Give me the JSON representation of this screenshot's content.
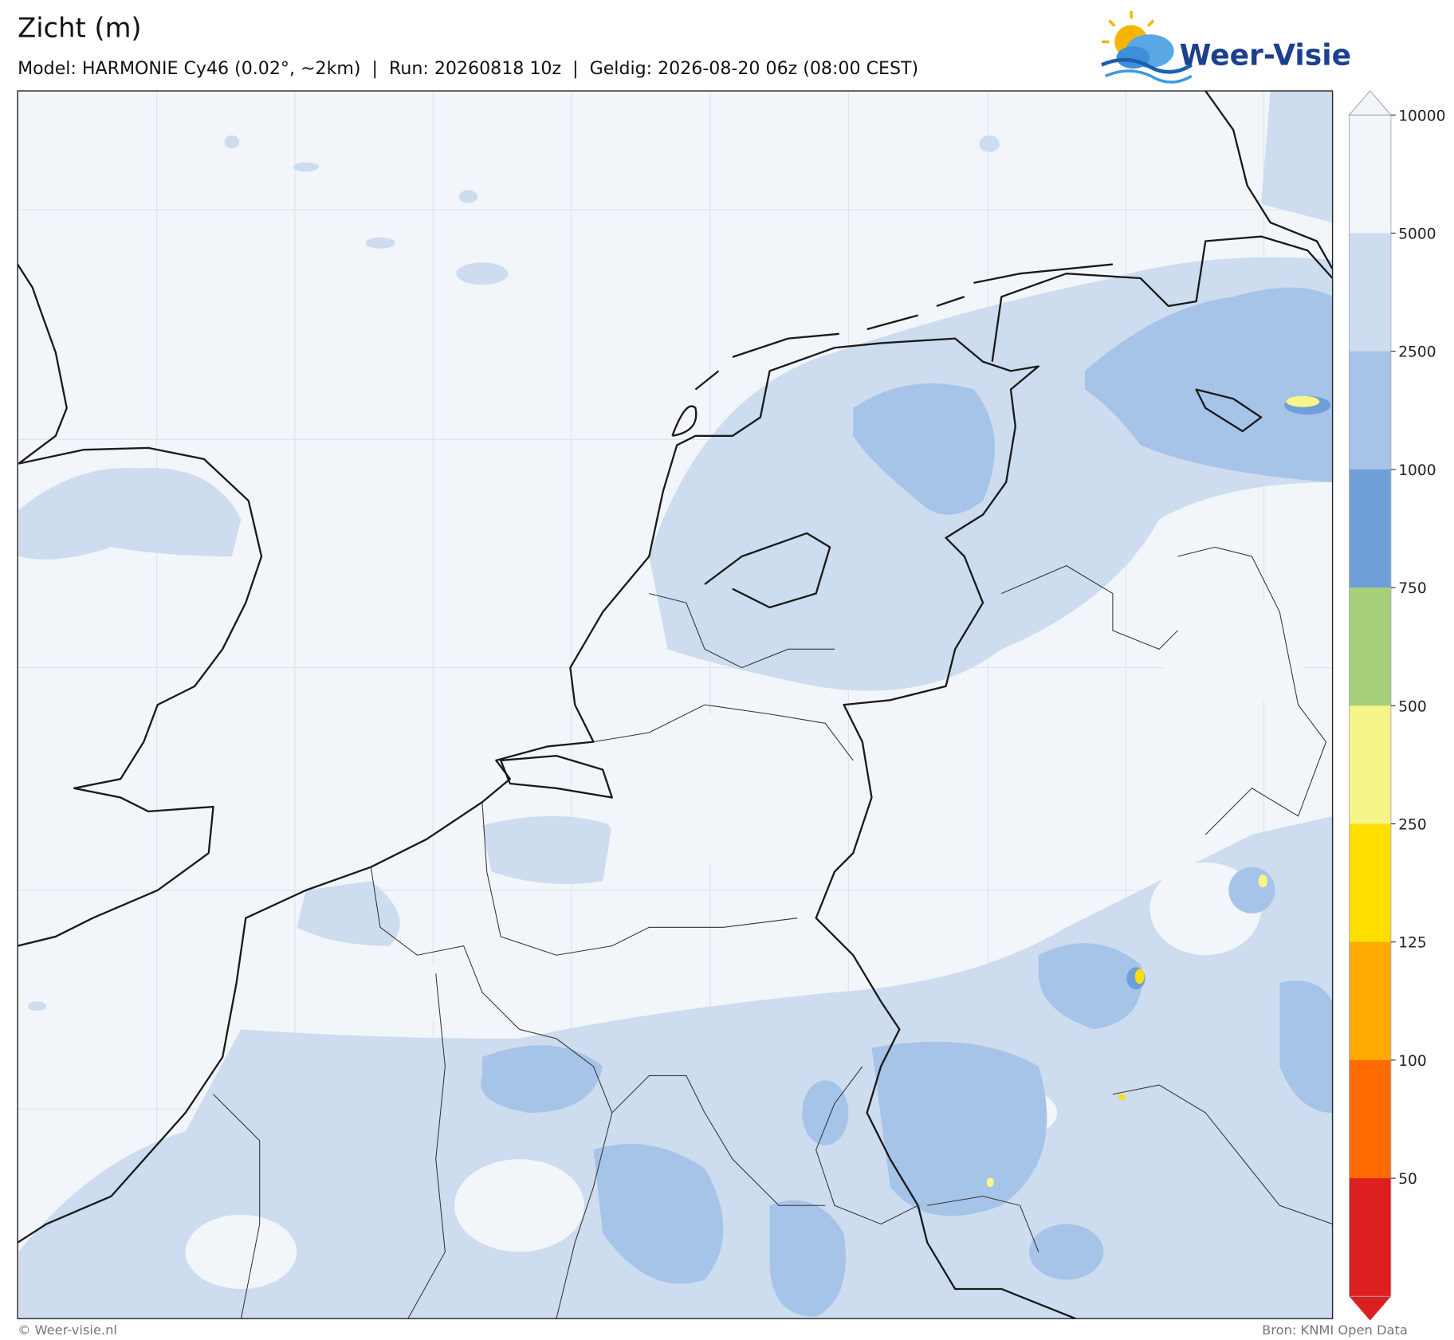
{
  "header": {
    "title": "Zicht (m)",
    "subtitle": "Model: HARMONIE Cy46 (0.02°, ~2km)  |  Run: 20260818 10z  |  Geldig: 2026-08-20 06z (08:00 CEST)"
  },
  "logo": {
    "text": "Weer-Visie"
  },
  "colorbar": {
    "levels": [
      10000,
      5000,
      2500,
      1000,
      750,
      500,
      250,
      125,
      100,
      50
    ],
    "colors": [
      "#f2f5fa",
      "#cddcef",
      "#a6c3e8",
      "#6f9fd8",
      "#a7d07a",
      "#f5f58a",
      "#ffdf00",
      "#ffaa00",
      "#ff6a00",
      "#dc1f1f"
    ]
  },
  "footer": {
    "left": "© Weer-visie.nl",
    "right": "Bron: KNMI Open Data"
  }
}
